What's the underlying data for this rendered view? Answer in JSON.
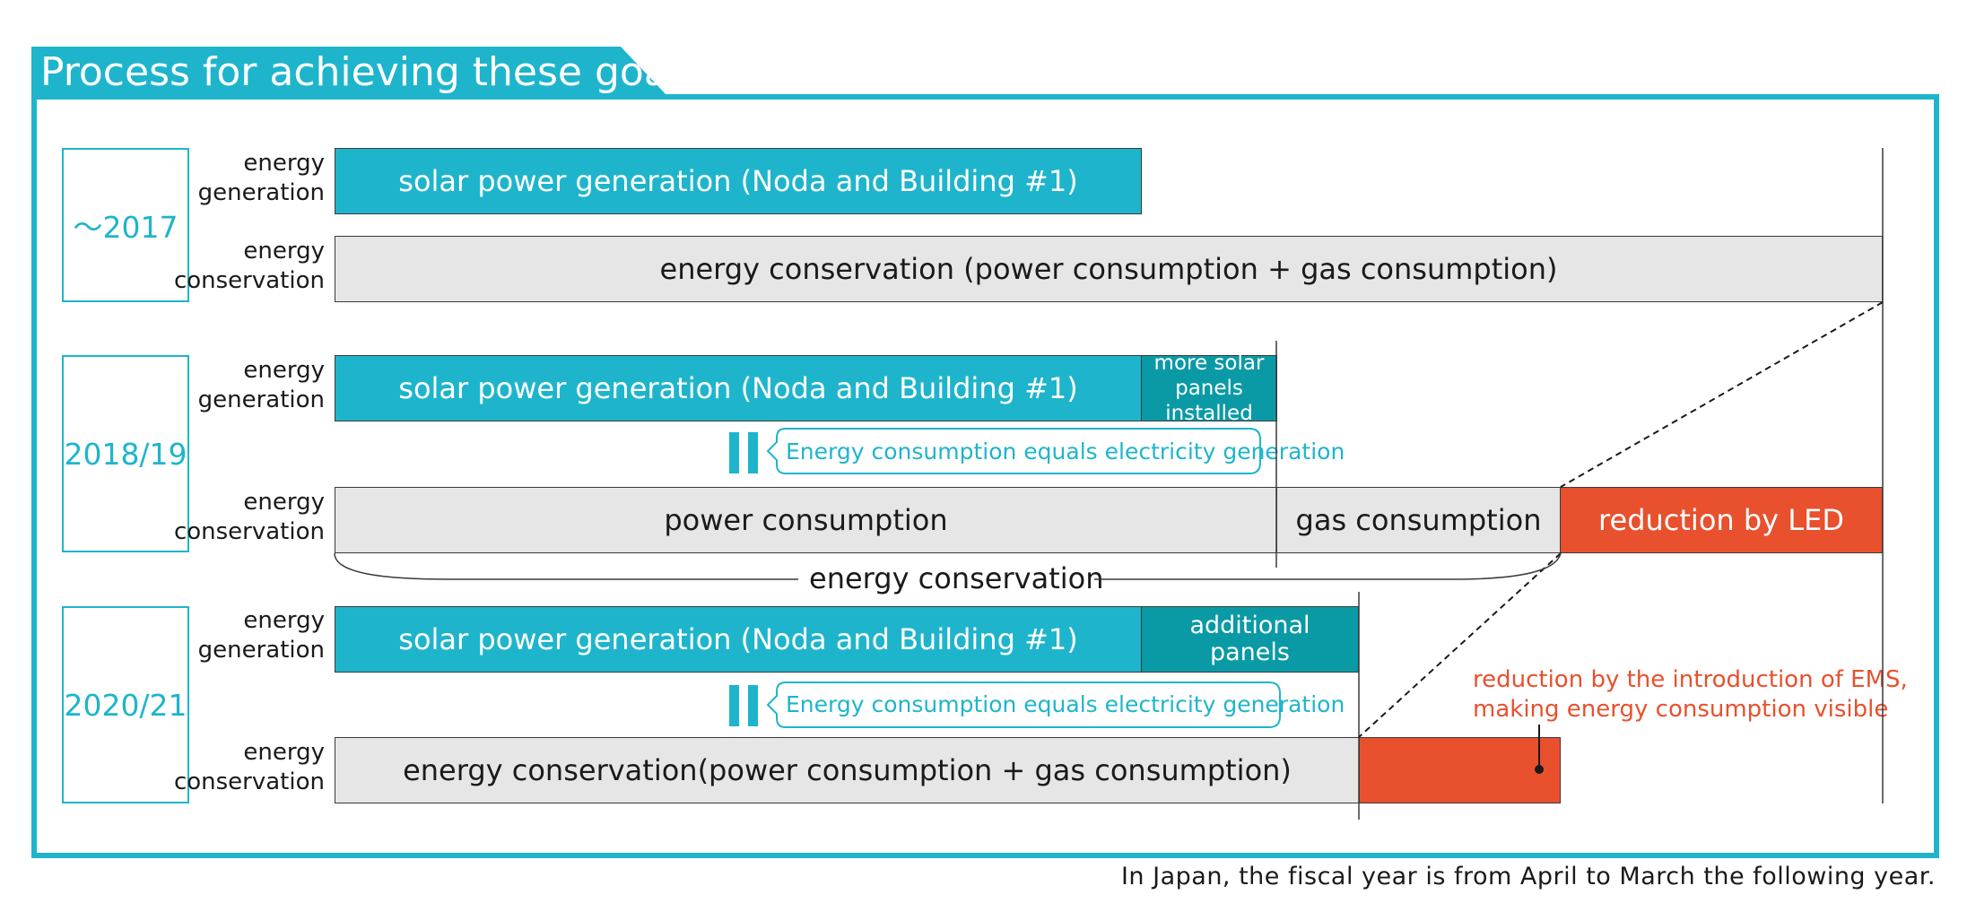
{
  "title": "Process for achieving these goals",
  "footnote": "In Japan, the fiscal year is from April to March the following year.",
  "colors": {
    "accent": "#1eb5cc",
    "dark_teal": "#0a9aa5",
    "reduction": "#e8502e",
    "consumption": "#e6e6e6"
  },
  "labels": {
    "generation": "energy\ngeneration",
    "conservation": "energy\nconservation"
  },
  "rows": [
    {
      "period": "～2017",
      "generation": {
        "solar": "solar power generation (Noda and Building #1)"
      },
      "conservation": {
        "total": "energy conservation (power consumption + gas consumption)"
      }
    },
    {
      "period": "2018/19",
      "generation": {
        "solar": "solar power generation (Noda and Building #1)",
        "extra": "more solar\npanels installed"
      },
      "equals": "Energy consumption equals electricity generation",
      "conservation": {
        "power": "power consumption",
        "gas": "gas consumption",
        "reduction": "reduction by LED"
      },
      "brace": "energy conservation"
    },
    {
      "period": "2020/21",
      "generation": {
        "solar": "solar power generation (Noda and Building #1)",
        "extra": "additional\npanels"
      },
      "equals": "Energy consumption equals electricity generation",
      "conservation": {
        "total": "energy conservation(power consumption + gas consumption)"
      },
      "ems_note": "reduction by the introduction of EMS,\nmaking energy consumption visible"
    }
  ]
}
